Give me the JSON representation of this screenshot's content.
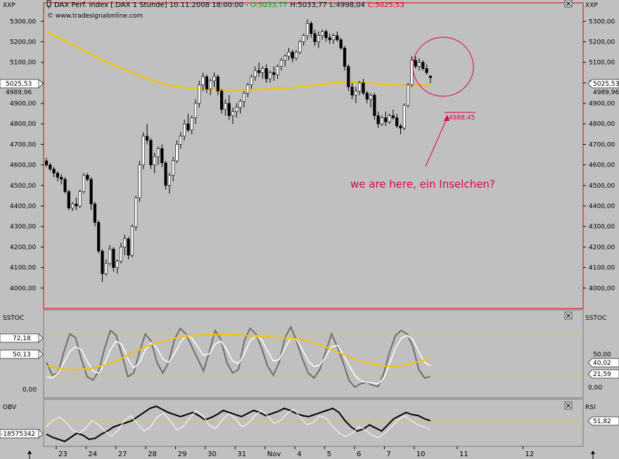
{
  "header": {
    "main_tag_left": "XXP",
    "main_tag_right": "XXP",
    "title_text": "DAX Perf. Index [.DAX  1 Stunde] 10.11.2008 18:00:00 - ",
    "open_text": "O:5033,77",
    "high_text": "H:5033,77",
    "low_text": "L:4998,04",
    "close_text": "C:5025,53",
    "credit": "© www.tradesignalonline.com"
  },
  "annotation": {
    "text": "we are here, ein Inselchen?",
    "level_label": "4888,45"
  },
  "colors": {
    "background": "#c0c0c0",
    "panel_border": "#7a7a7a",
    "main_panel_border": "#e00000",
    "candle_up": "#ffffff",
    "candle_down": "#000000",
    "sma": "#f2c400",
    "annotation": "#e0003c",
    "stoch_dark": "#6e6e6e",
    "stoch_light": "#ffffff",
    "obv": "#000000"
  },
  "stoch_panel": {
    "tag_left": "SSTOC",
    "tag_right": "SSTOC",
    "badge_top": "72,18",
    "badge_mid": "50,13",
    "left_tick": "0,00",
    "right_ticks": [
      "50,00",
      "0,00"
    ],
    "right_badges": [
      "40,02",
      "21,59"
    ]
  },
  "rsi_panel": {
    "tag_left": "OBV",
    "tag_right": "RSI",
    "obv_badge": "-18575342",
    "rsi_badge": "51,82"
  },
  "x_axis_labels": [
    "23",
    "24",
    "27",
    "28",
    "29",
    "30",
    "31",
    "Nov",
    "4",
    "5",
    "6",
    "7",
    "10",
    "11",
    "12"
  ],
  "chart_data": {
    "type": "candlestick",
    "title": "DAX Perf. Index [.DAX  1 Stunde]",
    "ylim": [
      3900,
      5390
    ],
    "y_ticks": [
      4000,
      4100,
      4200,
      4300,
      4400,
      4500,
      4600,
      4700,
      4800,
      4900,
      5000,
      5100,
      5200,
      5300
    ],
    "y_tick_labels": [
      "4000,00",
      "4100,00",
      "4200,00",
      "4300,00",
      "4400,00",
      "4500,00",
      "4600,00",
      "4700,00",
      "4800,00",
      "4900,00",
      "5000,00",
      "5100,00",
      "5200,00",
      "5300,00"
    ],
    "last_price": 5025.53,
    "last_price_label": "5025,53",
    "sma_last": 4989.96,
    "sma_label": "4989,96",
    "series": [
      {
        "name": "23",
        "candles": [
          [
            4620,
            4635,
            4590,
            4600
          ],
          [
            4600,
            4610,
            4570,
            4580
          ],
          [
            4580,
            4590,
            4540,
            4560
          ],
          [
            4560,
            4570,
            4520,
            4540
          ],
          [
            4540,
            4555,
            4505,
            4530
          ],
          [
            4530,
            4540,
            4460,
            4470
          ],
          [
            4470,
            4480,
            4380,
            4390
          ],
          [
            4390,
            4420,
            4375,
            4410
          ]
        ]
      },
      {
        "name": "24",
        "candles": [
          [
            4410,
            4440,
            4380,
            4400
          ],
          [
            4400,
            4480,
            4390,
            4470
          ],
          [
            4470,
            4560,
            4460,
            4550
          ],
          [
            4550,
            4560,
            4520,
            4530
          ],
          [
            4530,
            4540,
            4380,
            4410
          ],
          [
            4410,
            4420,
            4300,
            4320
          ],
          [
            4320,
            4330,
            4170,
            4180
          ],
          [
            4180,
            4190,
            4030,
            4070
          ]
        ]
      },
      {
        "name": "27",
        "candles": [
          [
            4070,
            4140,
            4060,
            4120
          ],
          [
            4120,
            4210,
            4110,
            4190
          ],
          [
            4190,
            4200,
            4080,
            4100
          ],
          [
            4100,
            4140,
            4070,
            4130
          ],
          [
            4130,
            4220,
            4120,
            4200
          ],
          [
            4200,
            4260,
            4160,
            4240
          ],
          [
            4240,
            4250,
            4140,
            4160
          ],
          [
            4160,
            4310,
            4150,
            4300
          ]
        ]
      },
      {
        "name": "28",
        "candles": [
          [
            4300,
            4450,
            4280,
            4440
          ],
          [
            4440,
            4620,
            4420,
            4600
          ],
          [
            4600,
            4760,
            4580,
            4740
          ],
          [
            4740,
            4800,
            4700,
            4720
          ],
          [
            4720,
            4730,
            4580,
            4600
          ],
          [
            4600,
            4660,
            4560,
            4640
          ],
          [
            4640,
            4690,
            4600,
            4680
          ],
          [
            4680,
            4700,
            4590,
            4610
          ]
        ]
      },
      {
        "name": "29",
        "candles": [
          [
            4610,
            4620,
            4480,
            4500
          ],
          [
            4500,
            4560,
            4460,
            4550
          ],
          [
            4550,
            4640,
            4520,
            4620
          ],
          [
            4620,
            4720,
            4610,
            4700
          ],
          [
            4700,
            4760,
            4680,
            4740
          ],
          [
            4740,
            4820,
            4720,
            4800
          ],
          [
            4800,
            4850,
            4760,
            4770
          ],
          [
            4770,
            4840,
            4750,
            4830
          ]
        ]
      },
      {
        "name": "30",
        "candles": [
          [
            4830,
            4920,
            4800,
            4900
          ],
          [
            4900,
            5010,
            4880,
            4990
          ],
          [
            4990,
            5050,
            4960,
            5030
          ],
          [
            5030,
            5040,
            4950,
            4970
          ],
          [
            4970,
            5020,
            4940,
            5010
          ],
          [
            5010,
            5050,
            4980,
            5030
          ],
          [
            5030,
            5040,
            4940,
            4960
          ],
          [
            4960,
            4970,
            4850,
            4870
          ]
        ]
      },
      {
        "name": "31",
        "candles": [
          [
            4870,
            4920,
            4840,
            4900
          ],
          [
            4900,
            4940,
            4820,
            4840
          ],
          [
            4840,
            4880,
            4800,
            4860
          ],
          [
            4860,
            4900,
            4830,
            4880
          ],
          [
            4880,
            4920,
            4850,
            4910
          ],
          [
            4910,
            4960,
            4880,
            4950
          ],
          [
            4950,
            5000,
            4930,
            4990
          ],
          [
            4990,
            5040,
            4970,
            5030
          ]
        ]
      },
      {
        "name": "Nov",
        "candles": [
          [
            5030,
            5080,
            5010,
            5060
          ],
          [
            5060,
            5100,
            5030,
            5050
          ],
          [
            5050,
            5080,
            5020,
            5070
          ],
          [
            5070,
            5090,
            5000,
            5020
          ],
          [
            5020,
            5060,
            5000,
            5050
          ],
          [
            5050,
            5080,
            5010,
            5040
          ],
          [
            5040,
            5090,
            5020,
            5080
          ],
          [
            5080,
            5120,
            5060,
            5110
          ]
        ]
      },
      {
        "name": "4",
        "candles": [
          [
            5110,
            5140,
            5080,
            5130
          ],
          [
            5130,
            5170,
            5110,
            5150
          ],
          [
            5150,
            5160,
            5100,
            5120
          ],
          [
            5120,
            5160,
            5110,
            5150
          ],
          [
            5150,
            5210,
            5140,
            5200
          ],
          [
            5200,
            5240,
            5180,
            5230
          ],
          [
            5230,
            5310,
            5210,
            5290
          ],
          [
            5290,
            5300,
            5220,
            5240
          ]
        ]
      },
      {
        "name": "5",
        "candles": [
          [
            5240,
            5260,
            5180,
            5200
          ],
          [
            5200,
            5250,
            5170,
            5230
          ],
          [
            5230,
            5260,
            5210,
            5250
          ],
          [
            5250,
            5260,
            5200,
            5220
          ],
          [
            5220,
            5240,
            5190,
            5210
          ],
          [
            5210,
            5240,
            5190,
            5230
          ],
          [
            5230,
            5250,
            5200,
            5210
          ],
          [
            5210,
            5220,
            5160,
            5170
          ]
        ]
      },
      {
        "name": "6",
        "candles": [
          [
            5170,
            5180,
            5060,
            5080
          ],
          [
            5080,
            5090,
            4960,
            4980
          ],
          [
            4980,
            5000,
            4920,
            4940
          ],
          [
            4940,
            4980,
            4900,
            4960
          ],
          [
            4960,
            5010,
            4940,
            5000
          ],
          [
            5000,
            5020,
            4940,
            4950
          ],
          [
            4950,
            4960,
            4900,
            4920
          ],
          [
            4920,
            4950,
            4880,
            4940
          ]
        ]
      },
      {
        "name": "7",
        "candles": [
          [
            4940,
            4950,
            4820,
            4840
          ],
          [
            4840,
            4860,
            4780,
            4800
          ],
          [
            4800,
            4840,
            4790,
            4830
          ],
          [
            4830,
            4860,
            4790,
            4810
          ],
          [
            4810,
            4850,
            4800,
            4840
          ],
          [
            4840,
            4870,
            4820,
            4830
          ],
          [
            4830,
            4850,
            4780,
            4790
          ],
          [
            4790,
            4800,
            4750,
            4780
          ]
        ]
      },
      {
        "name": "10",
        "candles": [
          [
            4780,
            4900,
            4770,
            4890
          ],
          [
            4890,
            5000,
            4880,
            4990
          ],
          [
            4990,
            5130,
            4980,
            5110
          ],
          [
            5110,
            5130,
            5070,
            5080
          ],
          [
            5080,
            5120,
            5060,
            5100
          ],
          [
            5100,
            5110,
            5060,
            5070
          ],
          [
            5070,
            5090,
            5040,
            5050
          ],
          [
            5034,
            5034,
            4998,
            5026
          ]
        ]
      }
    ],
    "sma": [
      5250,
      5200,
      5150,
      5100,
      5060,
      5020,
      4990,
      4975,
      4968,
      4965,
      4966,
      4970,
      4975,
      4985,
      4998,
      5005,
      4998,
      4990,
      4986,
      4990
    ],
    "stochastic": {
      "dark": [
        40,
        22,
        25,
        55,
        80,
        75,
        45,
        20,
        15,
        28,
        60,
        85,
        78,
        50,
        20,
        25,
        55,
        80,
        70,
        40,
        25,
        40,
        72,
        88,
        80,
        62,
        45,
        28,
        55,
        85,
        72,
        40,
        25,
        30,
        70,
        88,
        80,
        60,
        35,
        22,
        40,
        75,
        90,
        70,
        45,
        25,
        18,
        30,
        55,
        80,
        62,
        40,
        15,
        5,
        10,
        12,
        8,
        6,
        25,
        55,
        78,
        85,
        80,
        62,
        30,
        18,
        20
      ],
      "light": [
        20,
        18,
        25,
        40,
        55,
        62,
        58,
        42,
        28,
        25,
        38,
        58,
        70,
        65,
        45,
        32,
        40,
        58,
        68,
        60,
        45,
        40,
        52,
        68,
        78,
        74,
        62,
        50,
        52,
        66,
        70,
        58,
        42,
        38,
        52,
        70,
        78,
        72,
        56,
        42,
        44,
        60,
        74,
        72,
        58,
        42,
        34,
        36,
        48,
        62,
        64,
        52,
        36,
        22,
        14,
        12,
        11,
        10,
        18,
        38,
        60,
        74,
        78,
        72,
        55,
        40,
        35
      ],
      "signal": [
        35,
        32,
        30,
        30,
        32,
        36,
        42,
        50,
        58,
        65,
        70,
        74,
        77,
        78,
        79,
        79,
        79,
        78,
        77,
        76,
        75,
        74,
        72,
        68,
        62,
        55,
        48,
        42,
        38,
        35,
        34,
        37,
        41,
        45
      ],
      "levels": [
        80,
        20
      ]
    },
    "obv": [
      -15,
      -18,
      -20,
      -22,
      -18,
      -14,
      -16,
      -20,
      -19,
      -15,
      -12,
      -8,
      -6,
      -4,
      -2,
      2,
      6,
      10,
      12,
      9,
      6,
      4,
      2,
      4,
      6,
      3,
      -1,
      1,
      4,
      8,
      6,
      4,
      2,
      5,
      8,
      6,
      3,
      5,
      7,
      10,
      8,
      5,
      3,
      2,
      4,
      6,
      8,
      10,
      6,
      -2,
      -8,
      -12,
      -10,
      -6,
      -9,
      -12,
      -6,
      0,
      3,
      6,
      4,
      3,
      0,
      -2
    ],
    "rsi": [
      45,
      55,
      60,
      52,
      40,
      35,
      42,
      55,
      48,
      38,
      30,
      40,
      55,
      62,
      50,
      38,
      45,
      60,
      66,
      55,
      40,
      45,
      58,
      70,
      62,
      48,
      42,
      55,
      65,
      58,
      45,
      50,
      62,
      70,
      62,
      50,
      55,
      66,
      72,
      60,
      48,
      52,
      62,
      58,
      45,
      35,
      30,
      35,
      45,
      40,
      32,
      28,
      35,
      45,
      55,
      62,
      55,
      48,
      45,
      40
    ]
  }
}
